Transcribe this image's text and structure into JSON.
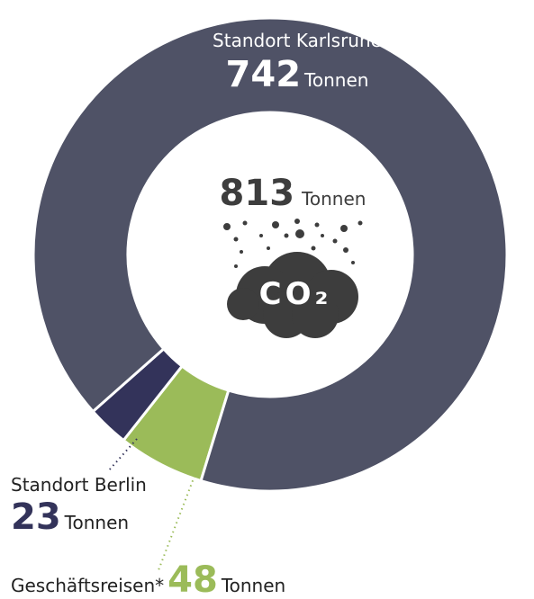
{
  "chart_data": {
    "type": "donut",
    "categories": [
      "Standort Karlsruhe",
      "Standort Berlin",
      "Geschäftsreisen*"
    ],
    "values": [
      742,
      23,
      48
    ],
    "colors": [
      "#4f5266",
      "#33335a",
      "#9bbb59"
    ],
    "unit": "Tonnen",
    "total": 813,
    "icon_label": "CO₂"
  }
}
